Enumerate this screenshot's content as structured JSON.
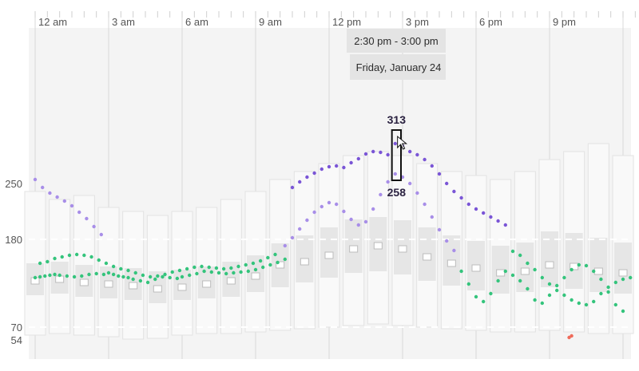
{
  "chart_data": {
    "type": "scatter",
    "x_ticks": [
      "12 am",
      "3 am",
      "6 am",
      "9 am",
      "12 pm",
      "3 pm",
      "6 pm",
      "9 pm"
    ],
    "y_ticks": [
      250,
      180,
      70,
      54
    ],
    "target_range": [
      70,
      180
    ],
    "ylim": [
      30,
      420
    ],
    "xlim_hours": [
      0,
      24.5
    ],
    "tooltip": {
      "time_range": "2:30 pm - 3:00 pm",
      "date": "Friday, January 24",
      "max": "313",
      "min": "258"
    },
    "highlight_bin": {
      "start": 14.5,
      "end": 15.0,
      "max": 313,
      "min": 258
    },
    "series": [
      {
        "color": "#34c47c",
        "values": [
          [
            0.0,
            132
          ],
          [
            0.2,
            133
          ],
          [
            0.4,
            134
          ],
          [
            0.6,
            135
          ],
          [
            0.8,
            136
          ],
          [
            1.0,
            135
          ],
          [
            1.3,
            134
          ],
          [
            1.6,
            133
          ],
          [
            1.9,
            134
          ],
          [
            2.2,
            136
          ],
          [
            2.5,
            137
          ],
          [
            2.8,
            136
          ],
          [
            3.0,
            138
          ],
          [
            3.2,
            136
          ],
          [
            3.4,
            134
          ],
          [
            3.6,
            133
          ],
          [
            3.8,
            132
          ],
          [
            4.0,
            130
          ],
          [
            4.3,
            128
          ],
          [
            4.6,
            126
          ],
          [
            4.9,
            130
          ],
          [
            5.2,
            133
          ],
          [
            5.5,
            132
          ],
          [
            5.8,
            131
          ],
          [
            6.0,
            133
          ],
          [
            6.3,
            135
          ],
          [
            6.6,
            137
          ],
          [
            6.9,
            140
          ],
          [
            7.2,
            139
          ],
          [
            7.5,
            138
          ],
          [
            7.8,
            137
          ],
          [
            8.1,
            138
          ],
          [
            8.4,
            139
          ],
          [
            8.7,
            140
          ],
          [
            9.0,
            142
          ],
          [
            9.3,
            145
          ],
          [
            9.6,
            148
          ],
          [
            9.9,
            151
          ],
          [
            10.2,
            155
          ]
        ]
      },
      {
        "color": "#34c47c",
        "values": [
          [
            0.2,
            150
          ],
          [
            0.5,
            152
          ],
          [
            0.8,
            156
          ],
          [
            1.1,
            158
          ],
          [
            1.4,
            160
          ],
          [
            1.7,
            161
          ],
          [
            2.0,
            160
          ],
          [
            2.3,
            158
          ],
          [
            2.6,
            154
          ],
          [
            2.9,
            150
          ],
          [
            3.2,
            146
          ],
          [
            3.5,
            143
          ],
          [
            3.8,
            141
          ],
          [
            4.1,
            138
          ],
          [
            4.4,
            135
          ],
          [
            4.7,
            133
          ],
          [
            5.0,
            134
          ],
          [
            5.3,
            136
          ],
          [
            5.6,
            139
          ],
          [
            5.9,
            141
          ],
          [
            6.2,
            143
          ],
          [
            6.5,
            145
          ],
          [
            6.8,
            146
          ],
          [
            7.1,
            145
          ],
          [
            7.4,
            144
          ],
          [
            7.7,
            143
          ],
          [
            8.0,
            144
          ],
          [
            8.3,
            146
          ],
          [
            8.6,
            148
          ],
          [
            8.9,
            150
          ],
          [
            9.2,
            153
          ],
          [
            9.5,
            157
          ],
          [
            9.8,
            161
          ]
        ]
      },
      {
        "color": "#a88ee8",
        "values": [
          [
            0.0,
            255
          ],
          [
            0.3,
            245
          ],
          [
            0.6,
            238
          ],
          [
            0.9,
            233
          ],
          [
            1.2,
            228
          ],
          [
            1.5,
            222
          ],
          [
            1.8,
            214
          ],
          [
            2.1,
            206
          ],
          [
            2.4,
            196
          ],
          [
            2.7,
            186
          ],
          [
            10.2,
            172
          ],
          [
            10.5,
            182
          ],
          [
            10.8,
            193
          ],
          [
            11.1,
            204
          ],
          [
            11.4,
            214
          ],
          [
            11.7,
            221
          ],
          [
            12.0,
            226
          ],
          [
            12.3,
            224
          ],
          [
            12.6,
            215
          ],
          [
            12.9,
            205
          ],
          [
            13.2,
            198
          ],
          [
            13.5,
            202
          ],
          [
            13.8,
            218
          ],
          [
            14.1,
            236
          ],
          [
            14.4,
            252
          ],
          [
            14.7,
            262
          ],
          [
            15.0,
            258
          ],
          [
            15.3,
            250
          ],
          [
            15.6,
            238
          ],
          [
            15.9,
            224
          ],
          [
            16.2,
            208
          ],
          [
            16.5,
            192
          ],
          [
            16.8,
            178
          ],
          [
            17.1,
            166
          ]
        ]
      },
      {
        "color": "#7a55d6",
        "values": [
          [
            10.5,
            245
          ],
          [
            10.8,
            252
          ],
          [
            11.1,
            258
          ],
          [
            11.4,
            263
          ],
          [
            11.7,
            268
          ],
          [
            12.0,
            271
          ],
          [
            12.3,
            272
          ],
          [
            12.6,
            270
          ],
          [
            12.9,
            276
          ],
          [
            13.2,
            281
          ],
          [
            13.5,
            287
          ],
          [
            13.8,
            290
          ],
          [
            14.1,
            289
          ],
          [
            14.4,
            286
          ],
          [
            14.7,
            300
          ],
          [
            15.0,
            297
          ],
          [
            15.3,
            290
          ],
          [
            15.6,
            286
          ],
          [
            15.9,
            280
          ],
          [
            16.2,
            272
          ],
          [
            16.5,
            262
          ],
          [
            16.8,
            250
          ],
          [
            17.1,
            240
          ],
          [
            17.4,
            232
          ],
          [
            17.7,
            224
          ],
          [
            18.0,
            218
          ],
          [
            18.3,
            213
          ],
          [
            18.6,
            208
          ],
          [
            18.9,
            203
          ],
          [
            19.2,
            198
          ]
        ]
      },
      {
        "color": "#34c47c",
        "values": [
          [
            17.4,
            140
          ],
          [
            17.7,
            124
          ],
          [
            18.0,
            108
          ],
          [
            18.3,
            102
          ],
          [
            18.6,
            112
          ],
          [
            18.9,
            128
          ],
          [
            19.2,
            140
          ],
          [
            19.5,
            135
          ],
          [
            19.8,
            128
          ],
          [
            20.1,
            118
          ],
          [
            20.4,
            104
          ],
          [
            20.7,
            100
          ],
          [
            21.0,
            110
          ],
          [
            21.3,
            122
          ],
          [
            21.6,
            132
          ],
          [
            21.9,
            142
          ],
          [
            22.2,
            148
          ],
          [
            22.5,
            147
          ],
          [
            22.8,
            140
          ],
          [
            23.1,
            130
          ],
          [
            23.4,
            114
          ],
          [
            23.7,
            98
          ],
          [
            24.0,
            90
          ]
        ]
      },
      {
        "color": "#34c47c",
        "values": [
          [
            19.5,
            165
          ],
          [
            19.8,
            160
          ],
          [
            20.1,
            150
          ],
          [
            20.4,
            142
          ],
          [
            20.7,
            132
          ],
          [
            21.0,
            124
          ],
          [
            21.3,
            116
          ],
          [
            21.6,
            110
          ],
          [
            21.9,
            104
          ],
          [
            22.2,
            100
          ],
          [
            22.5,
            98
          ],
          [
            22.8,
            102
          ],
          [
            23.1,
            112
          ],
          [
            23.4,
            120
          ],
          [
            23.7,
            126
          ],
          [
            24.0,
            130
          ],
          [
            24.3,
            132
          ]
        ]
      },
      {
        "color": "#ef6b5a",
        "values": [
          [
            21.8,
            57
          ],
          [
            21.9,
            59
          ]
        ]
      }
    ],
    "percentile_boxes": [
      {
        "h": 0,
        "p5": 60,
        "p25": 110,
        "median": 128,
        "p75": 150,
        "p95": 240
      },
      {
        "h": 1,
        "p5": 62,
        "p25": 112,
        "median": 130,
        "p75": 152,
        "p95": 230
      },
      {
        "h": 2,
        "p5": 60,
        "p25": 108,
        "median": 126,
        "p75": 148,
        "p95": 235
      },
      {
        "h": 3,
        "p5": 58,
        "p25": 106,
        "median": 124,
        "p75": 146,
        "p95": 220
      },
      {
        "h": 4,
        "p5": 55,
        "p25": 104,
        "median": 122,
        "p75": 144,
        "p95": 215
      },
      {
        "h": 5,
        "p5": 56,
        "p25": 100,
        "median": 118,
        "p75": 140,
        "p95": 210
      },
      {
        "h": 6,
        "p5": 60,
        "p25": 104,
        "median": 120,
        "p75": 142,
        "p95": 215
      },
      {
        "h": 7,
        "p5": 62,
        "p25": 106,
        "median": 124,
        "p75": 146,
        "p95": 220
      },
      {
        "h": 8,
        "p5": 62,
        "p25": 108,
        "median": 128,
        "p75": 152,
        "p95": 230
      },
      {
        "h": 9,
        "p5": 64,
        "p25": 114,
        "median": 134,
        "p75": 160,
        "p95": 240
      },
      {
        "h": 10,
        "p5": 66,
        "p25": 120,
        "median": 148,
        "p75": 175,
        "p95": 255
      },
      {
        "h": 11,
        "p5": 68,
        "p25": 126,
        "median": 152,
        "p75": 185,
        "p95": 265
      },
      {
        "h": 12,
        "p5": 70,
        "p25": 132,
        "median": 160,
        "p75": 195,
        "p95": 275
      },
      {
        "h": 13,
        "p5": 72,
        "p25": 138,
        "median": 168,
        "p75": 205,
        "p95": 285
      },
      {
        "h": 14,
        "p5": 74,
        "p25": 140,
        "median": 172,
        "p75": 208,
        "p95": 290
      },
      {
        "h": 15,
        "p5": 72,
        "p25": 136,
        "median": 168,
        "p75": 204,
        "p95": 285
      },
      {
        "h": 16,
        "p5": 70,
        "p25": 128,
        "median": 158,
        "p75": 195,
        "p95": 275
      },
      {
        "h": 17,
        "p5": 68,
        "p25": 122,
        "median": 150,
        "p75": 185,
        "p95": 265
      },
      {
        "h": 18,
        "p5": 66,
        "p25": 116,
        "median": 144,
        "p75": 178,
        "p95": 260
      },
      {
        "h": 19,
        "p5": 64,
        "p25": 112,
        "median": 138,
        "p75": 172,
        "p95": 255
      },
      {
        "h": 20,
        "p5": 64,
        "p25": 114,
        "median": 140,
        "p75": 176,
        "p95": 265
      },
      {
        "h": 21,
        "p5": 66,
        "p25": 120,
        "median": 148,
        "p75": 190,
        "p95": 280
      },
      {
        "h": 22,
        "p5": 64,
        "p25": 118,
        "median": 146,
        "p75": 188,
        "p95": 290
      },
      {
        "h": 23,
        "p5": 62,
        "p25": 114,
        "median": 140,
        "p75": 182,
        "p95": 300
      },
      {
        "h": 24,
        "p5": 62,
        "p25": 112,
        "median": 138,
        "p75": 176,
        "p95": 285
      }
    ]
  }
}
